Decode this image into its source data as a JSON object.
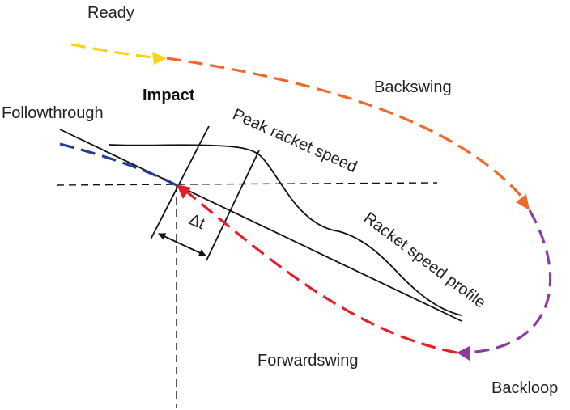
{
  "labels": {
    "ready": "Ready",
    "backswing": "Backswing",
    "impact": "Impact",
    "followthrough": "Followthrough",
    "peak_speed": "Peak racket speed",
    "speed_profile": "Racket speed profile",
    "delta_t": "Δt",
    "forwardswing": "Forwardswing",
    "backloop": "Backloop"
  },
  "colors": {
    "ready": "#f7d31a",
    "backswing": "#ee6a2a",
    "backloop": "#8a3d9e",
    "forwardswing": "#e3202a",
    "followthrough": "#233c96",
    "lines": "#111111"
  }
}
